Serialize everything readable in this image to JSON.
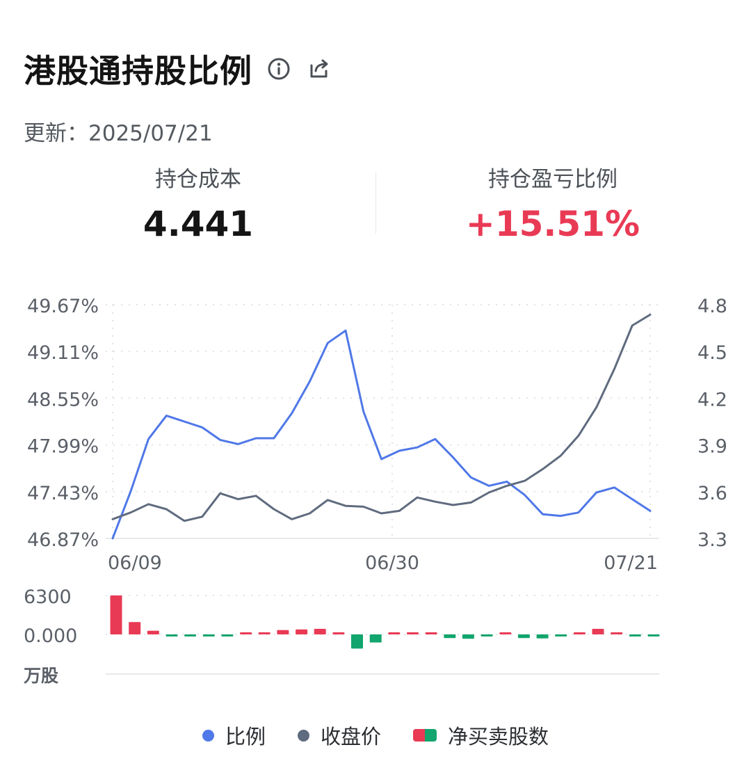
{
  "header": {
    "title": "港股通持股比例",
    "info_icon": "info-circle-icon",
    "share_icon": "share-icon",
    "updated": "更新：2025/07/21"
  },
  "stats": {
    "cost_label": "持仓成本",
    "cost_value": "4.441",
    "pnl_label": "持仓盈亏比例",
    "pnl_value": "+15.51%"
  },
  "colors": {
    "ratio": "#4f78e8",
    "price": "#5f6b7e",
    "buy": "#e93a55",
    "sell": "#12a56d",
    "grid": "#dfe2e6",
    "axis_text": "#5b6068"
  },
  "chart_data": [
    {
      "type": "line",
      "x_ticks": [
        "06/09",
        "06/30",
        "07/21"
      ],
      "left_axis": {
        "ticks": [
          "49.67%",
          "49.11%",
          "48.55%",
          "47.99%",
          "47.43%",
          "46.87%"
        ],
        "range": [
          46.87,
          49.67
        ]
      },
      "right_axis": {
        "ticks": [
          "4.8",
          "4.5",
          "4.2",
          "3.9",
          "3.6",
          "3.3"
        ],
        "range": [
          3.3,
          4.8
        ]
      },
      "series": [
        {
          "name": "比例",
          "axis": "left",
          "values": [
            46.87,
            47.43,
            48.06,
            48.34,
            48.27,
            48.2,
            48.05,
            48.0,
            48.07,
            48.07,
            48.37,
            48.75,
            49.21,
            49.36,
            48.39,
            47.82,
            47.92,
            47.96,
            48.06,
            47.84,
            47.6,
            47.5,
            47.55,
            47.39,
            47.16,
            47.14,
            47.18,
            47.42,
            47.48,
            47.34,
            47.2
          ]
        },
        {
          "name": "收盘价",
          "axis": "left",
          "values": [
            47.1,
            47.18,
            47.28,
            47.22,
            47.08,
            47.13,
            47.41,
            47.34,
            47.38,
            47.22,
            47.1,
            47.17,
            47.33,
            47.26,
            47.25,
            47.17,
            47.2,
            47.36,
            47.31,
            47.27,
            47.3,
            47.42,
            47.5,
            47.56,
            47.7,
            47.86,
            48.1,
            48.44,
            48.9,
            49.42,
            49.55
          ]
        }
      ]
    },
    {
      "type": "bar",
      "y_ticks": [
        "6300",
        "0.000"
      ],
      "unit_label": "万股",
      "range": [
        -2500,
        6300
      ],
      "series": [
        {
          "name": "净买卖股数",
          "values": [
            6300,
            2000,
            600,
            -120,
            -120,
            -120,
            -120,
            120,
            120,
            700,
            800,
            900,
            200,
            -2300,
            -1300,
            150,
            150,
            150,
            -600,
            -700,
            -150,
            150,
            -600,
            -650,
            -200,
            150,
            900,
            150,
            -250,
            -250
          ]
        }
      ]
    }
  ],
  "legend": [
    {
      "label": "比例",
      "kind": "dot",
      "color": "#4f78e8"
    },
    {
      "label": "收盘价",
      "kind": "dot",
      "color": "#5f6b7e"
    },
    {
      "label": "净买卖股数",
      "kind": "dual",
      "colors": [
        "#e93a55",
        "#12a56d"
      ]
    }
  ]
}
